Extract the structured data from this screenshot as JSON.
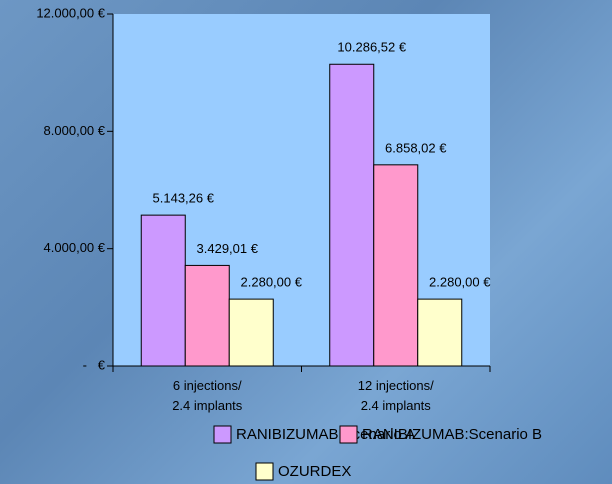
{
  "chart_data": {
    "type": "bar",
    "categories": [
      "6 injections/\n2.4 implants",
      "12 injections/\n2.4 implants"
    ],
    "series": [
      {
        "name": "RANIBIZUMAB:Scenario A",
        "color": "#cc99ff",
        "values": [
          5143.26,
          10286.52
        ],
        "value_labels": [
          "5.143,26 €",
          "10.286,52 €"
        ]
      },
      {
        "name": "RANIBIZUMAB:Scenario B",
        "color": "#ff99cc",
        "values": [
          3429.01,
          6858.02
        ],
        "value_labels": [
          "3.429,01 €",
          "6.858,02 €"
        ]
      },
      {
        "name": "OZURDEX",
        "color": "#ffffcc",
        "values": [
          2280,
          2280
        ],
        "value_labels": [
          "2.280,00 €",
          "2.280,00 €"
        ]
      }
    ],
    "ylim": [
      0,
      12000
    ],
    "yticks": [
      {
        "value": 0,
        "label": "-   €"
      },
      {
        "value": 4000,
        "label": "4.000,00 €"
      },
      {
        "value": 8000,
        "label": "8.000,00 €"
      },
      {
        "value": 12000,
        "label": "12.000,00 €"
      }
    ],
    "plot_background": "#99ccff"
  }
}
